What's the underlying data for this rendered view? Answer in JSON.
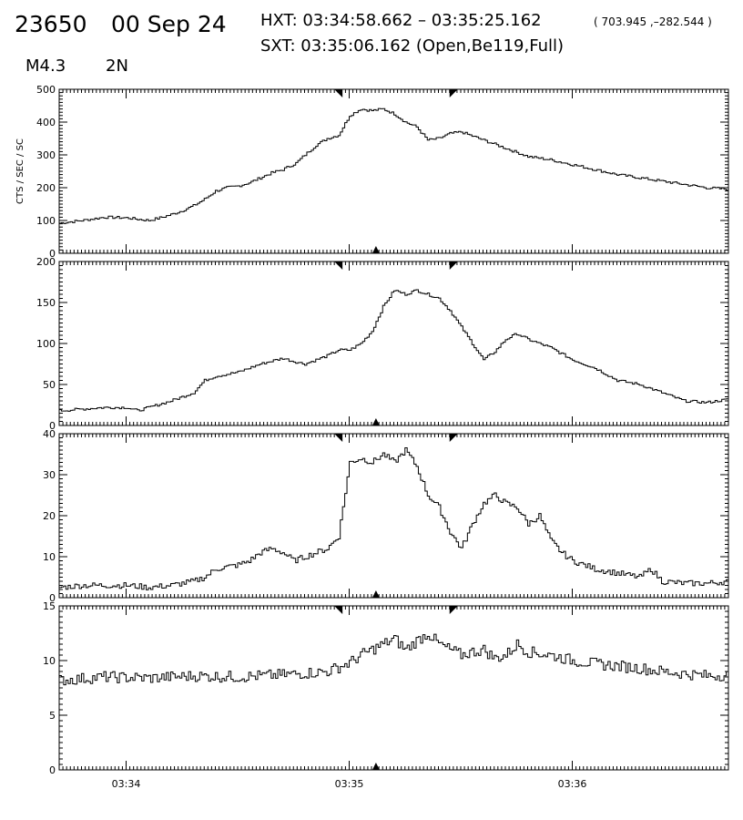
{
  "header": {
    "id": "23650",
    "date": "00 Sep 24",
    "hxt": "HXT: 03:34:58.662 – 03:35:25.162",
    "position": "( 703.945 ,–282.544 )",
    "sxt": "SXT: 03:35:06.162 (Open,Be119,Full)",
    "flare_class": "M4.3",
    "location": "2N"
  },
  "chart_data": [
    {
      "type": "line",
      "step": true,
      "ylabel": "CTS / SEC / SC",
      "ylim": [
        0,
        500
      ],
      "yticks": [
        0,
        100,
        200,
        300,
        400,
        500
      ],
      "x": [
        0,
        1,
        2,
        3,
        4,
        4.5,
        5,
        5.5,
        6,
        6.5,
        7,
        7.5,
        8,
        8.5,
        9,
        9.5,
        10,
        10.6,
        11,
        11.5,
        12,
        12.5,
        13,
        13.5,
        14,
        14.5,
        15,
        15.5,
        16,
        16.5,
        17,
        17.5,
        18,
        19,
        20,
        21,
        22,
        23,
        24,
        25,
        26,
        27,
        28,
        29,
        30
      ],
      "y": [
        92,
        100,
        110,
        108,
        100,
        108,
        118,
        130,
        145,
        165,
        190,
        200,
        205,
        215,
        230,
        245,
        255,
        275,
        300,
        330,
        350,
        360,
        420,
        440,
        435,
        440,
        425,
        400,
        385,
        345,
        350,
        365,
        370,
        345,
        320,
        295,
        285,
        270,
        255,
        240,
        230,
        220,
        210,
        200,
        195
      ]
    },
    {
      "type": "line",
      "step": true,
      "ylim": [
        0,
        200
      ],
      "yticks": [
        0,
        50,
        100,
        150,
        200
      ],
      "x": [
        0,
        1,
        2,
        3,
        3.5,
        4,
        5,
        6,
        6.5,
        7,
        8,
        9,
        10,
        10.5,
        11,
        12,
        12.5,
        13,
        13.5,
        14,
        14.5,
        15,
        15.5,
        16,
        17,
        17.5,
        18,
        18.5,
        19,
        19.5,
        20,
        20.5,
        21,
        22,
        23,
        24,
        25,
        26,
        27,
        28,
        29,
        30
      ],
      "y": [
        18,
        20,
        22,
        22,
        18,
        22,
        30,
        40,
        55,
        60,
        65,
        75,
        82,
        78,
        75,
        85,
        92,
        92,
        100,
        115,
        145,
        165,
        160,
        165,
        155,
        140,
        120,
        100,
        80,
        90,
        105,
        112,
        105,
        95,
        80,
        70,
        55,
        50,
        40,
        30,
        28,
        32
      ]
    },
    {
      "type": "line",
      "step": true,
      "ylim": [
        0,
        40
      ],
      "yticks": [
        0,
        10,
        20,
        30,
        40
      ],
      "x": [
        0,
        1,
        2,
        3,
        4,
        5,
        6,
        6.5,
        7,
        8,
        8.5,
        9,
        9.5,
        10,
        10.5,
        11,
        11.5,
        12,
        12.5,
        13,
        13.5,
        14,
        14.5,
        15,
        15.5,
        16,
        16.5,
        17,
        17.5,
        18,
        18.5,
        19,
        19.5,
        20,
        20.5,
        21,
        21.5,
        22,
        22.5,
        23,
        24,
        25,
        26,
        26.5,
        27,
        28,
        29,
        30
      ],
      "y": [
        2.5,
        3,
        3,
        3,
        2.5,
        3,
        4,
        5,
        7,
        8,
        9,
        11,
        12,
        11,
        9,
        10,
        11,
        12,
        15,
        33,
        34,
        33,
        35,
        33,
        36,
        32,
        25,
        22,
        16,
        12,
        18,
        23,
        25,
        23,
        22,
        18,
        20,
        14,
        11,
        9,
        7,
        6,
        5,
        7,
        4,
        3.5,
        3.5,
        4
      ]
    },
    {
      "type": "line",
      "step": true,
      "ylim": [
        0,
        15
      ],
      "yticks": [
        0,
        5,
        10,
        15
      ],
      "x": [
        0,
        2,
        4,
        6,
        8,
        10,
        12,
        12.5,
        13,
        13.5,
        14,
        14.5,
        15,
        15.5,
        16,
        16.5,
        17,
        17.5,
        18,
        18.5,
        19,
        19.5,
        20,
        20.5,
        21,
        22,
        23,
        24,
        25,
        26,
        27,
        28,
        29,
        30
      ],
      "y": [
        8.2,
        8.5,
        8.4,
        8.6,
        8.5,
        8.7,
        9.0,
        9.4,
        9.8,
        10.5,
        11.0,
        11.5,
        12.0,
        11.0,
        11.8,
        12.5,
        11.5,
        11.0,
        10.5,
        10.8,
        11.0,
        10.2,
        10.5,
        11.5,
        10.8,
        10.5,
        10.0,
        9.7,
        9.5,
        9.3,
        9.0,
        8.8,
        8.6,
        8.7
      ]
    }
  ],
  "x_axis": {
    "range": [
      0,
      30
    ],
    "ticks": [
      {
        "x": 3,
        "label": "03:34"
      },
      {
        "x": 13,
        "label": "03:35"
      },
      {
        "x": 23,
        "label": "03:36"
      }
    ]
  },
  "markers": {
    "hxt_start": 12.7,
    "hxt_end": 17.5,
    "sxt": 14.2
  }
}
